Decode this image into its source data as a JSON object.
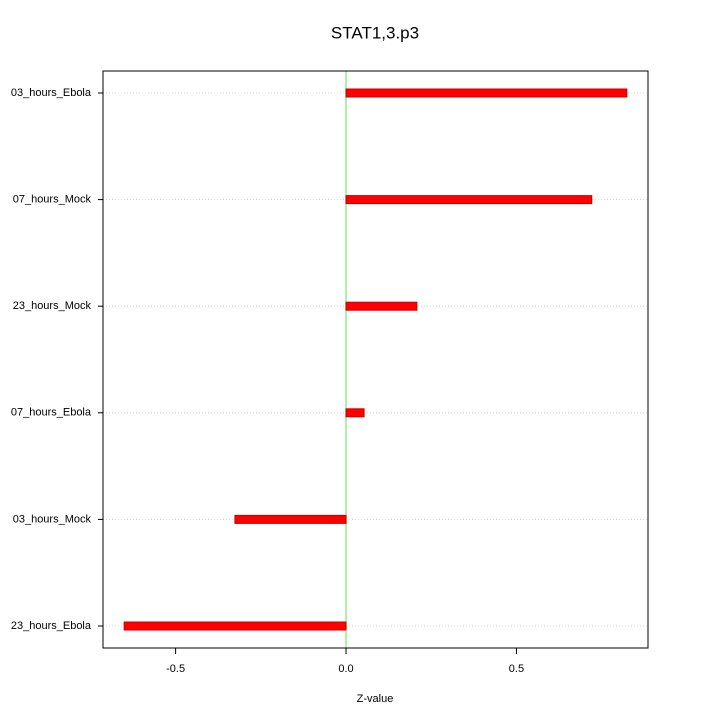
{
  "chart_data": {
    "type": "hbar",
    "title": "STAT1,3.p3",
    "x_label": "Z-value",
    "categories": [
      "03_hours_Ebola",
      "07_hours_Mock",
      "23_hours_Mock",
      "07_hours_Ebola",
      "03_hours_Mock",
      "23_hours_Ebola"
    ],
    "values": [
      0.824,
      0.721,
      0.208,
      0.053,
      -0.326,
      -0.651
    ],
    "color": "#ff0000",
    "zero_line_color": "#90ee90",
    "xlim": [
      -0.713,
      0.886
    ],
    "xticks": [
      -0.5,
      {
        "value": 0,
        "label": "0.0"
      },
      0.5
    ],
    "grid": true
  }
}
